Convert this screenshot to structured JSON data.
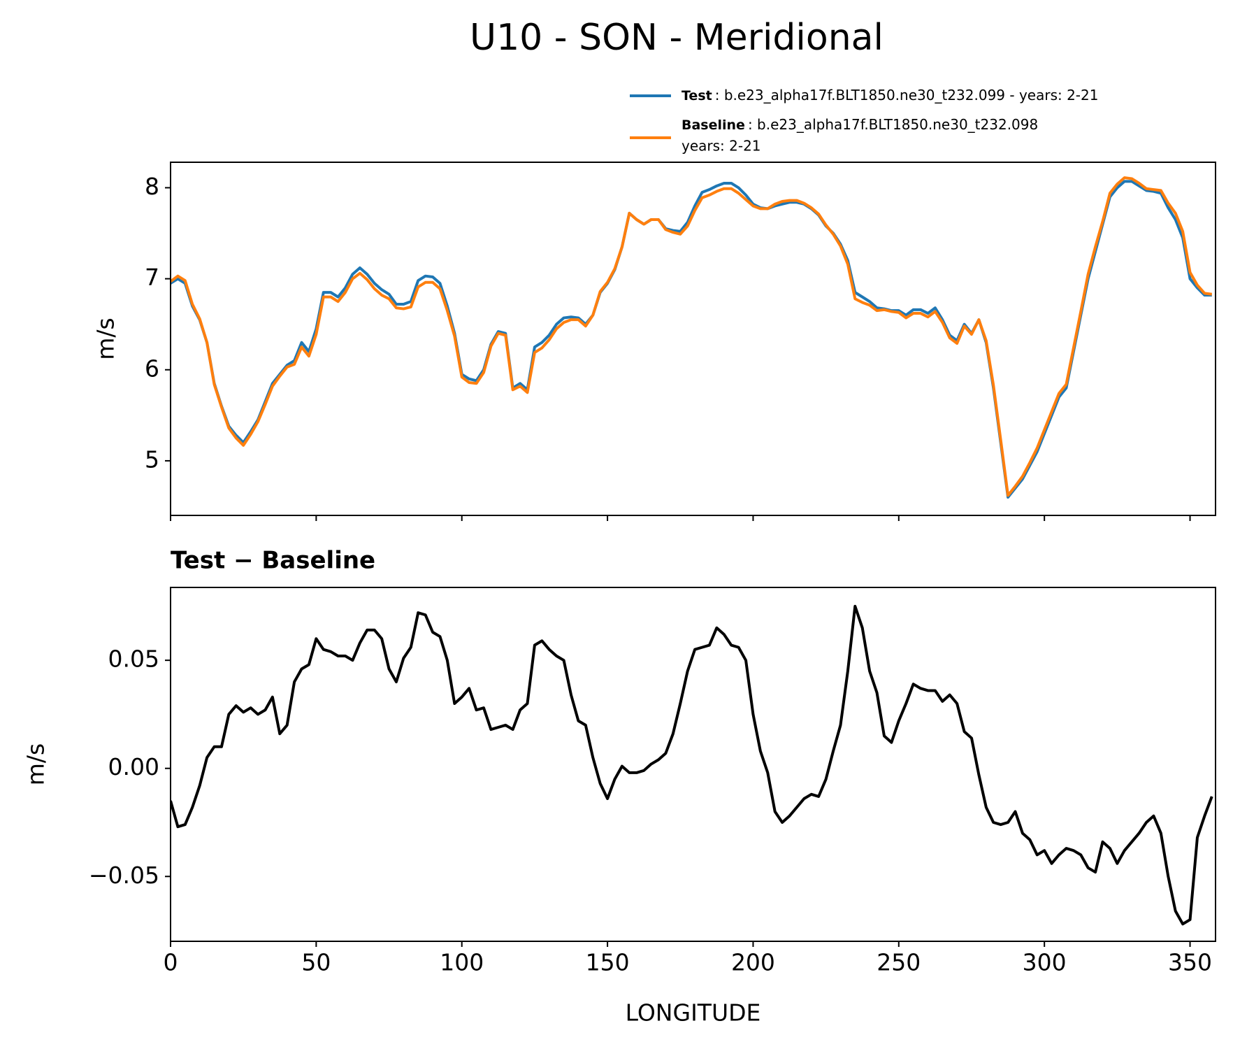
{
  "title": "U10 - SON - Meridional",
  "chart_data": [
    {
      "type": "line",
      "x": [
        0,
        2.5,
        5,
        7.5,
        10,
        12.5,
        15,
        17.5,
        20,
        22.5,
        25,
        27.5,
        30,
        32.5,
        35,
        37.5,
        40,
        42.5,
        45,
        47.5,
        50,
        52.5,
        55,
        57.5,
        60,
        62.5,
        65,
        67.5,
        70,
        72.5,
        75,
        77.5,
        80,
        82.5,
        85,
        87.5,
        90,
        92.5,
        95,
        97.5,
        100,
        102.5,
        105,
        107.5,
        110,
        112.5,
        115,
        117.5,
        120,
        122.5,
        125,
        127.5,
        130,
        132.5,
        135,
        137.5,
        140,
        142.5,
        145,
        147.5,
        150,
        152.5,
        155,
        157.5,
        160,
        162.5,
        165,
        167.5,
        170,
        172.5,
        175,
        177.5,
        180,
        182.5,
        185,
        187.5,
        190,
        192.5,
        195,
        197.5,
        200,
        202.5,
        205,
        207.5,
        210,
        212.5,
        215,
        217.5,
        220,
        222.5,
        225,
        227.5,
        230,
        232.5,
        235,
        237.5,
        240,
        242.5,
        245,
        247.5,
        250,
        252.5,
        255,
        257.5,
        260,
        262.5,
        265,
        267.5,
        270,
        272.5,
        275,
        277.5,
        280,
        282.5,
        285,
        287.5,
        290,
        292.5,
        295,
        297.5,
        300,
        302.5,
        305,
        307.5,
        310,
        312.5,
        315,
        317.5,
        320,
        322.5,
        325,
        327.5,
        330,
        332.5,
        335,
        337.5,
        340,
        342.5,
        345,
        347.5,
        350,
        352.5,
        355,
        357.5
      ],
      "series": [
        {
          "name": "Test",
          "description": [
            ": b.e23_alpha17f.BLT1850.ne30_t232.099 - years: 2-21"
          ],
          "color": "#1f77b4",
          "values": [
            6.95,
            7.0,
            6.95,
            6.7,
            6.55,
            6.3,
            5.85,
            5.6,
            5.38,
            5.28,
            5.2,
            5.32,
            5.45,
            5.65,
            5.85,
            5.95,
            6.05,
            6.1,
            6.3,
            6.2,
            6.45,
            6.85,
            6.85,
            6.8,
            6.9,
            7.05,
            7.12,
            7.05,
            6.95,
            6.88,
            6.83,
            6.72,
            6.72,
            6.75,
            6.98,
            7.03,
            7.02,
            6.95,
            6.7,
            6.4,
            5.95,
            5.9,
            5.88,
            6.0,
            6.28,
            6.42,
            6.4,
            5.8,
            5.85,
            5.78,
            6.25,
            6.3,
            6.38,
            6.5,
            6.57,
            6.58,
            6.57,
            6.5,
            6.6,
            6.85,
            6.95,
            7.1,
            7.35,
            7.72,
            7.65,
            7.6,
            7.65,
            7.65,
            7.55,
            7.53,
            7.52,
            7.62,
            7.8,
            7.95,
            7.98,
            8.02,
            8.05,
            8.05,
            8.0,
            7.92,
            7.82,
            7.78,
            7.77,
            7.8,
            7.82,
            7.84,
            7.84,
            7.82,
            7.77,
            7.7,
            7.58,
            7.5,
            7.38,
            7.2,
            6.85,
            6.8,
            6.75,
            6.68,
            6.67,
            6.65,
            6.65,
            6.6,
            6.66,
            6.66,
            6.62,
            6.68,
            6.55,
            6.38,
            6.32,
            6.5,
            6.4,
            6.55,
            6.3,
            5.8,
            5.2,
            4.6,
            4.7,
            4.8,
            4.95,
            5.1,
            5.3,
            5.5,
            5.7,
            5.8,
            6.2,
            6.6,
            7.0,
            7.3,
            7.6,
            7.9,
            8.0,
            8.07,
            8.07,
            8.02,
            7.97,
            7.96,
            7.94,
            7.78,
            7.65,
            7.45,
            7.0,
            6.9,
            6.82,
            6.82
          ]
        },
        {
          "name": "Baseline",
          "description": [
            ": b.e23_alpha17f.BLT1850.ne30_t232.098",
            "years: 2-21"
          ],
          "color": "#ff7f0e",
          "values": [
            6.97,
            7.03,
            6.98,
            6.72,
            6.56,
            6.3,
            5.84,
            5.59,
            5.36,
            5.25,
            5.17,
            5.29,
            5.43,
            5.62,
            5.82,
            5.93,
            6.03,
            6.06,
            6.25,
            6.15,
            6.39,
            6.8,
            6.8,
            6.75,
            6.85,
            7.0,
            7.06,
            6.99,
            6.89,
            6.82,
            6.78,
            6.68,
            6.67,
            6.69,
            6.91,
            6.96,
            6.96,
            6.89,
            6.65,
            6.37,
            5.92,
            5.86,
            5.85,
            5.97,
            6.26,
            6.4,
            6.38,
            5.78,
            5.82,
            5.75,
            6.19,
            6.24,
            6.33,
            6.45,
            6.52,
            6.55,
            6.55,
            6.48,
            6.6,
            6.86,
            6.96,
            7.11,
            7.35,
            7.72,
            7.65,
            7.6,
            7.65,
            7.65,
            7.54,
            7.51,
            7.49,
            7.58,
            7.75,
            7.89,
            7.92,
            7.96,
            7.99,
            7.99,
            7.94,
            7.87,
            7.8,
            7.77,
            7.77,
            7.82,
            7.85,
            7.86,
            7.86,
            7.83,
            7.78,
            7.71,
            7.59,
            7.49,
            7.36,
            7.16,
            6.78,
            6.74,
            6.71,
            6.65,
            6.66,
            6.64,
            6.63,
            6.57,
            6.62,
            6.62,
            6.58,
            6.64,
            6.52,
            6.35,
            6.29,
            6.48,
            6.39,
            6.55,
            6.32,
            5.83,
            5.23,
            4.62,
            4.72,
            4.83,
            4.98,
            5.14,
            5.34,
            5.54,
            5.74,
            5.84,
            6.24,
            6.64,
            7.05,
            7.35,
            7.63,
            7.94,
            8.04,
            8.11,
            8.1,
            8.05,
            7.99,
            7.98,
            7.97,
            7.83,
            7.72,
            7.52,
            7.07,
            6.93,
            6.84,
            6.83
          ]
        }
      ],
      "xlim": [
        0,
        358.75
      ],
      "xticks": [
        0,
        50,
        100,
        150,
        200,
        250,
        300,
        350
      ],
      "show_xtick_labels": false,
      "ylim": [
        4.4,
        8.28
      ],
      "yticks": [
        5,
        6,
        7,
        8
      ],
      "ylabel": "m/s"
    },
    {
      "type": "line",
      "title": "Test − Baseline",
      "x": [
        0,
        2.5,
        5,
        7.5,
        10,
        12.5,
        15,
        17.5,
        20,
        22.5,
        25,
        27.5,
        30,
        32.5,
        35,
        37.5,
        40,
        42.5,
        45,
        47.5,
        50,
        52.5,
        55,
        57.5,
        60,
        62.5,
        65,
        67.5,
        70,
        72.5,
        75,
        77.5,
        80,
        82.5,
        85,
        87.5,
        90,
        92.5,
        95,
        97.5,
        100,
        102.5,
        105,
        107.5,
        110,
        112.5,
        115,
        117.5,
        120,
        122.5,
        125,
        127.5,
        130,
        132.5,
        135,
        137.5,
        140,
        142.5,
        145,
        147.5,
        150,
        152.5,
        155,
        157.5,
        160,
        162.5,
        165,
        167.5,
        170,
        172.5,
        175,
        177.5,
        180,
        182.5,
        185,
        187.5,
        190,
        192.5,
        195,
        197.5,
        200,
        202.5,
        205,
        207.5,
        210,
        212.5,
        215,
        217.5,
        220,
        222.5,
        225,
        227.5,
        230,
        232.5,
        235,
        237.5,
        240,
        242.5,
        245,
        247.5,
        250,
        252.5,
        255,
        257.5,
        260,
        262.5,
        265,
        267.5,
        270,
        272.5,
        275,
        277.5,
        280,
        282.5,
        285,
        287.5,
        290,
        292.5,
        295,
        297.5,
        300,
        302.5,
        305,
        307.5,
        310,
        312.5,
        315,
        317.5,
        320,
        322.5,
        325,
        327.5,
        330,
        332.5,
        335,
        337.5,
        340,
        342.5,
        345,
        347.5,
        350,
        352.5,
        355,
        357.5
      ],
      "color": "#000000",
      "values": [
        -0.015,
        -0.027,
        -0.026,
        -0.018,
        -0.008,
        0.005,
        0.01,
        0.01,
        0.025,
        0.029,
        0.026,
        0.028,
        0.025,
        0.027,
        0.033,
        0.016,
        0.02,
        0.04,
        0.046,
        0.048,
        0.06,
        0.055,
        0.054,
        0.052,
        0.052,
        0.05,
        0.058,
        0.064,
        0.064,
        0.06,
        0.046,
        0.04,
        0.051,
        0.056,
        0.072,
        0.071,
        0.063,
        0.061,
        0.05,
        0.03,
        0.033,
        0.037,
        0.027,
        0.028,
        0.018,
        0.019,
        0.02,
        0.018,
        0.027,
        0.03,
        0.057,
        0.059,
        0.055,
        0.052,
        0.05,
        0.034,
        0.022,
        0.02,
        0.005,
        -0.007,
        -0.014,
        -0.005,
        0.001,
        -0.002,
        -0.002,
        -0.001,
        0.002,
        0.004,
        0.007,
        0.016,
        0.03,
        0.045,
        0.055,
        0.056,
        0.057,
        0.065,
        0.062,
        0.057,
        0.056,
        0.05,
        0.025,
        0.008,
        -0.002,
        -0.02,
        -0.025,
        -0.022,
        -0.018,
        -0.014,
        -0.012,
        -0.013,
        -0.005,
        0.008,
        0.02,
        0.045,
        0.075,
        0.065,
        0.045,
        0.035,
        0.015,
        0.012,
        0.022,
        0.03,
        0.039,
        0.037,
        0.036,
        0.036,
        0.031,
        0.034,
        0.03,
        0.017,
        0.014,
        -0.003,
        -0.018,
        -0.025,
        -0.026,
        -0.025,
        -0.02,
        -0.03,
        -0.033,
        -0.04,
        -0.038,
        -0.044,
        -0.04,
        -0.037,
        -0.038,
        -0.04,
        -0.046,
        -0.048,
        -0.034,
        -0.037,
        -0.044,
        -0.038,
        -0.034,
        -0.03,
        -0.025,
        -0.022,
        -0.03,
        -0.05,
        -0.066,
        -0.072,
        -0.07,
        -0.032,
        -0.022,
        -0.013
      ],
      "xlim": [
        0,
        358.75
      ],
      "xticks": [
        0,
        50,
        100,
        150,
        200,
        250,
        300,
        350
      ],
      "show_xtick_labels": true,
      "xlabel": "LONGITUDE",
      "ylim": [
        -0.08,
        0.0837
      ],
      "yticks": [
        {
          "value": -0.05,
          "label": "−0.05"
        },
        {
          "value": 0,
          "label": "0.00"
        },
        {
          "value": 0.05,
          "label": "0.05"
        }
      ],
      "ylabel": "m/s"
    }
  ]
}
